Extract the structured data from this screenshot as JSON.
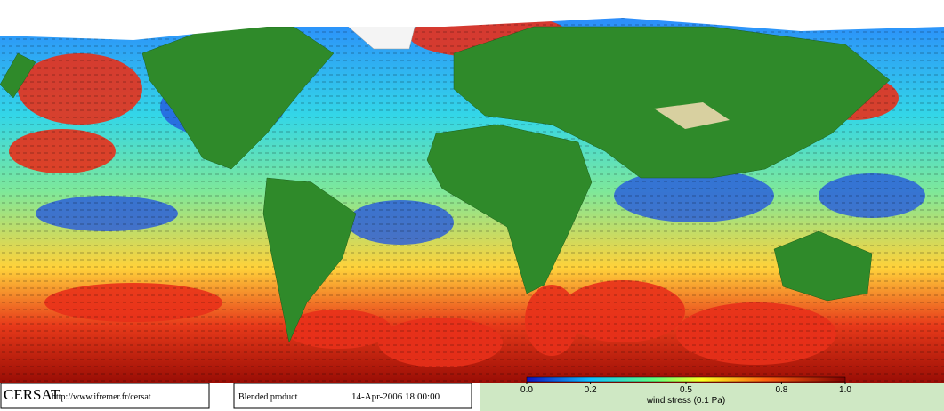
{
  "footer": {
    "logo": "CERSAT",
    "url": "http://www.ifremer.fr/cersat",
    "product": "Blended product",
    "date": "14-Apr-2006 18:00:00"
  },
  "colorbar": {
    "label": "wind stress (0.1 Pa)",
    "lim": [
      0,
      1
    ],
    "ticks": [
      {
        "value": 0,
        "label": "0.0"
      },
      0.2,
      0.5,
      0.8,
      {
        "value": 1,
        "label": "1.0"
      }
    ]
  }
}
